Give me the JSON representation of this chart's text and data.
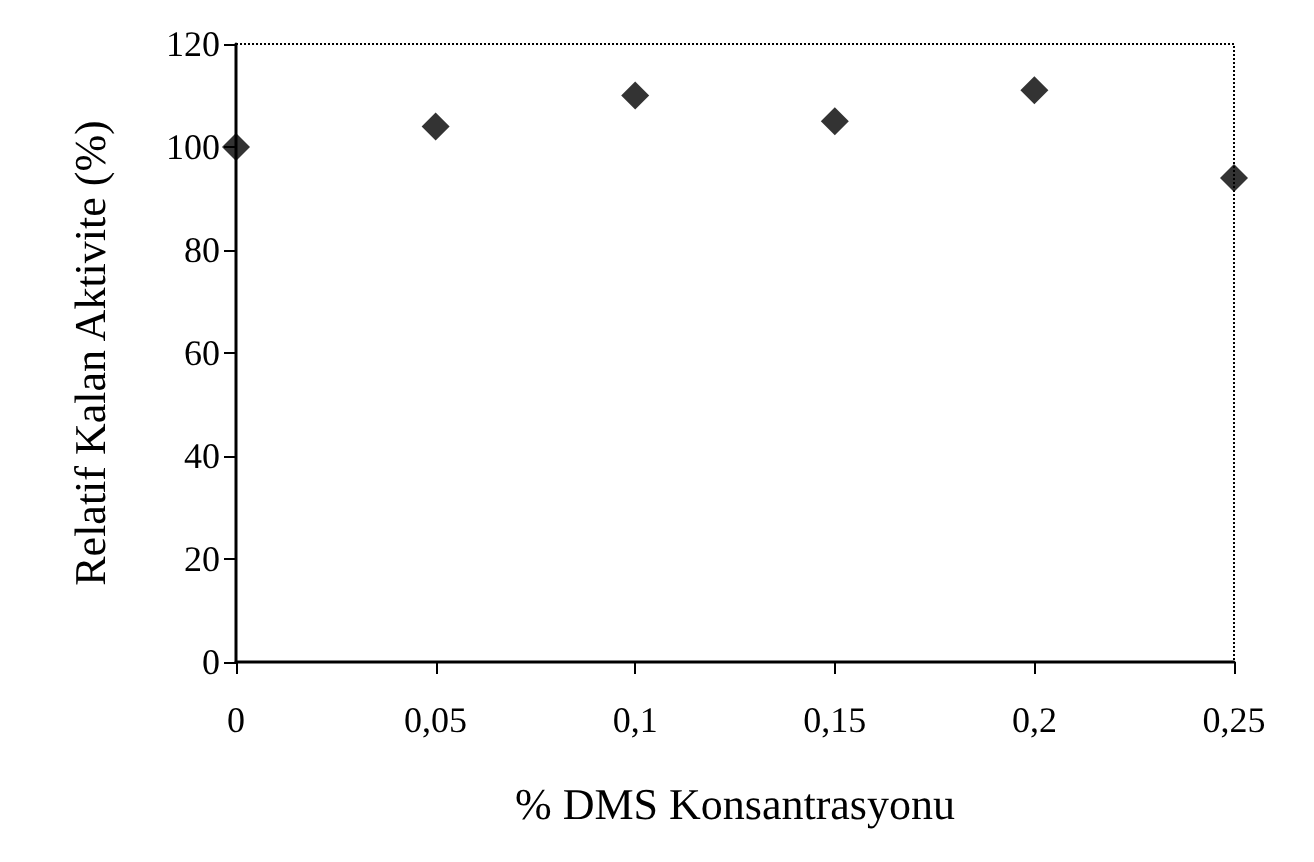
{
  "chart_data": {
    "type": "scatter",
    "xlabel": "% DMS Konsantrasyonu",
    "ylabel": "Relatif Kalan Aktivite (%)",
    "x": [
      0,
      0.05,
      0.1,
      0.15,
      0.2,
      0.25
    ],
    "values": [
      100,
      104,
      110,
      105,
      111,
      94
    ],
    "color": "#000000",
    "marker": "diamond",
    "xlim": [
      0,
      0.25
    ],
    "xticks": [
      0,
      {
        "value": 0.05,
        "label": "0,05"
      },
      {
        "value": 0.1,
        "label": "0,1"
      },
      {
        "value": 0.15,
        "label": "0,15"
      },
      {
        "value": 0.2,
        "label": "0,2"
      },
      {
        "value": 0.25,
        "label": "0,25"
      }
    ],
    "ylim": [
      0,
      120
    ],
    "yticks": [
      0,
      20,
      40,
      60,
      80,
      100,
      120
    ],
    "grid": false
  }
}
